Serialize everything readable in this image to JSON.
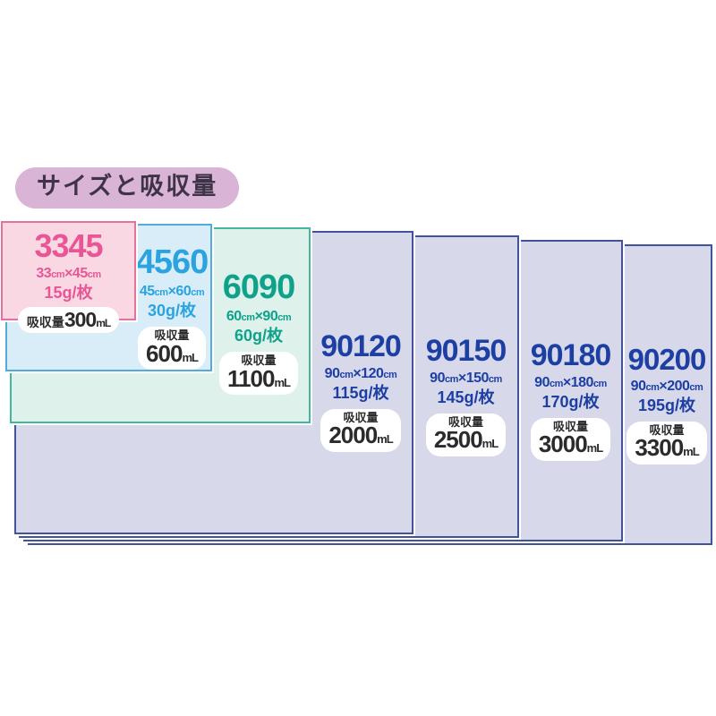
{
  "title": "サイズと吸収量",
  "labels": {
    "absorb": "吸収量",
    "cm": "cm",
    "times": "×",
    "ml": "mL"
  },
  "sheets": [
    {
      "code": "3345",
      "width_cm": "33",
      "height_cm": "45",
      "weight": "15g/枚",
      "capacity": "300",
      "colors": {
        "fill": "#f9d8e3",
        "border": "#e4729f",
        "text": "#e85695"
      }
    },
    {
      "code": "4560",
      "width_cm": "45",
      "height_cm": "60",
      "weight": "30g/枚",
      "capacity": "600",
      "colors": {
        "fill": "#d9edf9",
        "border": "#53aadc",
        "text": "#2aa3e0"
      }
    },
    {
      "code": "6090",
      "width_cm": "60",
      "height_cm": "90",
      "weight": "60g/枚",
      "capacity": "1100",
      "colors": {
        "fill": "#def1eb",
        "border": "#45b7a0",
        "text": "#0fa28b"
      }
    },
    {
      "code": "90120",
      "width_cm": "90",
      "height_cm": "120",
      "weight": "115g/枚",
      "capacity": "2000",
      "colors": {
        "fill": "#d7d9eb",
        "border": "#41549b",
        "text": "#1d3fa4"
      }
    },
    {
      "code": "90150",
      "width_cm": "90",
      "height_cm": "150",
      "weight": "145g/枚",
      "capacity": "2500",
      "colors": {
        "fill": "#d7d9eb",
        "border": "#41549b",
        "text": "#1d3fa4"
      }
    },
    {
      "code": "90180",
      "width_cm": "90",
      "height_cm": "180",
      "weight": "170g/枚",
      "capacity": "3000",
      "colors": {
        "fill": "#d7d9eb",
        "border": "#41549b",
        "text": "#1d3fa4"
      }
    },
    {
      "code": "90200",
      "width_cm": "90",
      "height_cm": "200",
      "weight": "195g/枚",
      "capacity": "3300",
      "colors": {
        "fill": "#d7d9eb",
        "border": "#41549b",
        "text": "#1d3fa4"
      }
    }
  ]
}
